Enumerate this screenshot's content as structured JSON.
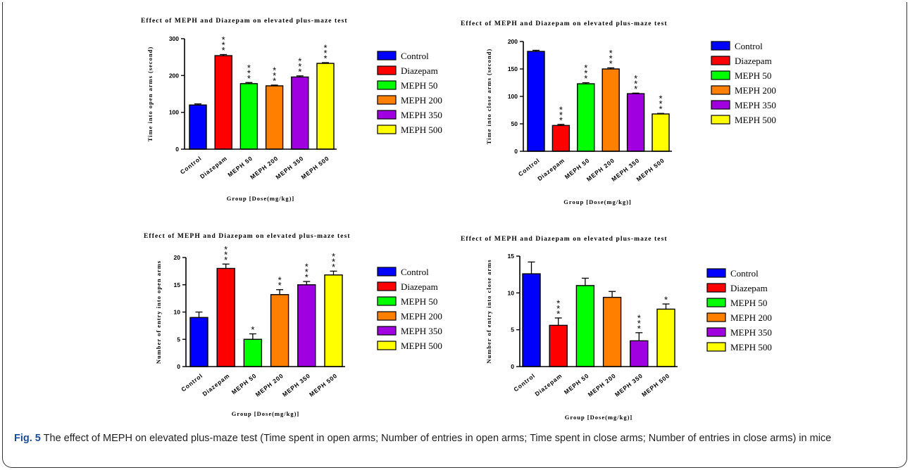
{
  "caption": {
    "label": "Fig. 5",
    "text": "The effect of MEPH on elevated plus-maze test (Time spent in open arms; Number of entries in open arms; Time spent in close arms; Number of entries in close arms) in mice"
  },
  "colors": [
    "#0000ff",
    "#ff0000",
    "#00ff00",
    "#ff8000",
    "#a000e0",
    "#ffff00"
  ],
  "chart_data": [
    {
      "type": "bar",
      "title": "Effect of MEPH and Diazepam on elevated plus-maze test",
      "xlabel": "Group [Dose(mg/kg)]",
      "ylabel": "Time into open arms (second)",
      "ylim": [
        0,
        300
      ],
      "yticks": [
        0,
        100,
        200,
        300
      ],
      "categories": [
        "Control",
        "Diazepam",
        "MEPH 50",
        "MEPH 200",
        "MEPH 350",
        "MEPH 500"
      ],
      "values": [
        120,
        254,
        178,
        172,
        196,
        233
      ],
      "errors": [
        3,
        3,
        3,
        2,
        3,
        2
      ],
      "significance": [
        "",
        "***",
        "***",
        "***",
        "***",
        "***"
      ],
      "legend": [
        "Control",
        "Diazepam",
        "MEPH 50",
        "MEPH 200",
        "MEPH 350",
        "MEPH 500"
      ],
      "legend_position": "right",
      "grid": false
    },
    {
      "type": "bar",
      "title": "Effect of MEPH and Diazepam on elevated plus-maze test",
      "xlabel": "Group [Dose(mg/kg)]",
      "ylabel": "Time into close arms (second)",
      "ylim": [
        0,
        200
      ],
      "yticks": [
        0,
        50,
        100,
        150,
        200
      ],
      "categories": [
        "Control",
        "Diazepam",
        "MEPH 50",
        "MEPH 200",
        "MEPH 350",
        "MEPH 500"
      ],
      "values": [
        182,
        47,
        123,
        150,
        105,
        68
      ],
      "errors": [
        2,
        2,
        2,
        2,
        1,
        1
      ],
      "significance": [
        "",
        "***",
        "***",
        "***",
        "***",
        "***"
      ],
      "legend": [
        "Control",
        "Diazepam",
        "MEPH 50",
        "MEPH 200",
        "MEPH 350",
        "MEPH 500"
      ],
      "legend_position": "right",
      "grid": false
    },
    {
      "type": "bar",
      "title": "Effect of MEPH and Diazepam on elevated plus-maze test",
      "xlabel": "Group [Dose(mg/kg)]",
      "ylabel": "Number of entry into open arms",
      "ylim": [
        0,
        20
      ],
      "yticks": [
        0,
        5,
        10,
        15,
        20
      ],
      "categories": [
        "Control",
        "Diazepam",
        "MEPH 50",
        "MEPH 200",
        "MEPH 350",
        "MEPH 500"
      ],
      "values": [
        9,
        18,
        5,
        13.2,
        15,
        16.8
      ],
      "errors": [
        1,
        0.8,
        1,
        0.9,
        0.6,
        0.7
      ],
      "significance": [
        "",
        "***",
        "*",
        "**",
        "***",
        "***"
      ],
      "legend": [
        "Control",
        "Diazepam",
        "MEPH 50",
        "MEPH 200",
        "MEPH 350",
        "MEPH 500"
      ],
      "legend_position": "right",
      "grid": false
    },
    {
      "type": "bar",
      "title": "Effect of MEPH and Diazepam on elevated plus-maze test",
      "xlabel": "Group [Dose(mg/kg)]",
      "ylabel": "Number of entry into close arms",
      "ylim": [
        0,
        15
      ],
      "yticks": [
        0,
        5,
        10,
        15
      ],
      "categories": [
        "Control",
        "Diazepam",
        "MEPH 50",
        "MEPH 200",
        "MEPH 350",
        "MEPH 500"
      ],
      "values": [
        12.6,
        5.6,
        11,
        9.4,
        3.5,
        7.8
      ],
      "errors": [
        1.6,
        1,
        1,
        0.8,
        1.1,
        0.7
      ],
      "significance": [
        "",
        "***",
        "",
        "",
        "***",
        "*"
      ],
      "legend": [
        "Control",
        "Diazepam",
        "MEPH 50",
        "MEPH 200",
        "MEPH 350",
        "MEPH 500"
      ],
      "legend_position": "right",
      "grid": false
    }
  ]
}
